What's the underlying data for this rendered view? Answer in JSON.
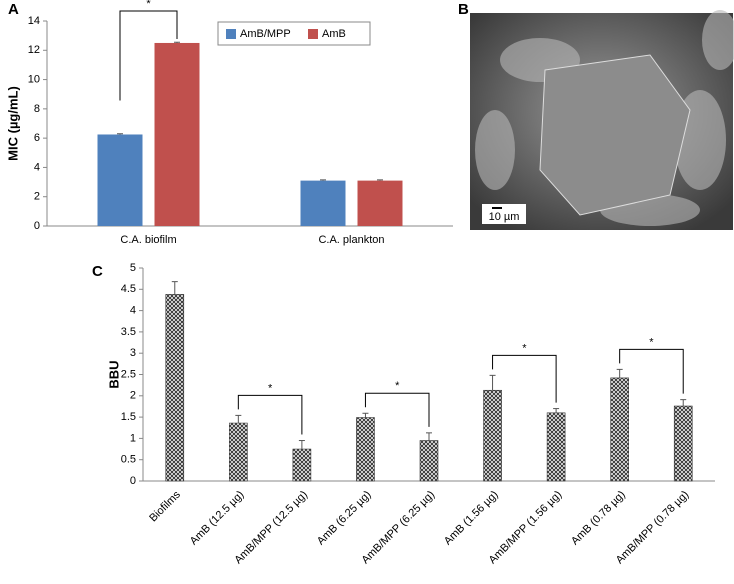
{
  "chart_data": [
    {
      "type": "grouped-bar",
      "label": "A",
      "ylabel": "MIC (µg/mL)",
      "categories": [
        "C.A. biofilm",
        "C.A. plankton"
      ],
      "series": [
        {
          "name": "AmB/MPP",
          "color": "#4f81bd",
          "values": [
            6.25,
            3.1
          ],
          "errors": [
            0.05,
            0.05
          ]
        },
        {
          "name": "AmB",
          "color": "#c0504d",
          "values": [
            12.5,
            3.1
          ],
          "errors": [
            0.05,
            0.05
          ]
        }
      ],
      "ylim": [
        0,
        14
      ],
      "yticks": [
        0,
        2,
        4,
        6,
        8,
        10,
        12,
        14
      ],
      "annotations": [
        {
          "text": "*",
          "category": "C.A. biofilm",
          "from": "AmB/MPP",
          "to": "AmB"
        }
      ]
    },
    {
      "type": "image",
      "label": "B",
      "scale_bar": "10 µm"
    },
    {
      "type": "bar",
      "label": "C",
      "ylabel": "BBU",
      "hatch": true,
      "color": "#333333",
      "categories": [
        "Biofilms",
        "AmB (12.5 µg)",
        "AmB/MPP (12.5 µg)",
        "AmB (6.25 µg)",
        "AmB/MPP (6.25 µg)",
        "AmB (1.56 µg)",
        "AmB/MPP (1.56 µg)",
        "AmB (0.78 µg)",
        "AmB/MPP (0.78 µg)"
      ],
      "values": [
        4.38,
        1.36,
        0.75,
        1.49,
        0.95,
        2.13,
        1.6,
        2.42,
        1.76
      ],
      "errors": [
        0.3,
        0.18,
        0.2,
        0.1,
        0.18,
        0.35,
        0.1,
        0.2,
        0.15
      ],
      "ylim": [
        0,
        5
      ],
      "yticks": [
        0,
        0.5,
        1,
        1.5,
        2,
        2.5,
        3,
        3.5,
        4,
        4.5,
        5
      ],
      "annotations": [
        {
          "text": "*",
          "from": "AmB (12.5 µg)",
          "to": "AmB/MPP (12.5 µg)"
        },
        {
          "text": "*",
          "from": "AmB (6.25 µg)",
          "to": "AmB/MPP (6.25 µg)"
        },
        {
          "text": "*",
          "from": "AmB (1.56 µg)",
          "to": "AmB/MPP (1.56 µg)"
        },
        {
          "text": "*",
          "from": "AmB (0.78 µg)",
          "to": "AmB/MPP (0.78 µg)"
        }
      ]
    }
  ]
}
